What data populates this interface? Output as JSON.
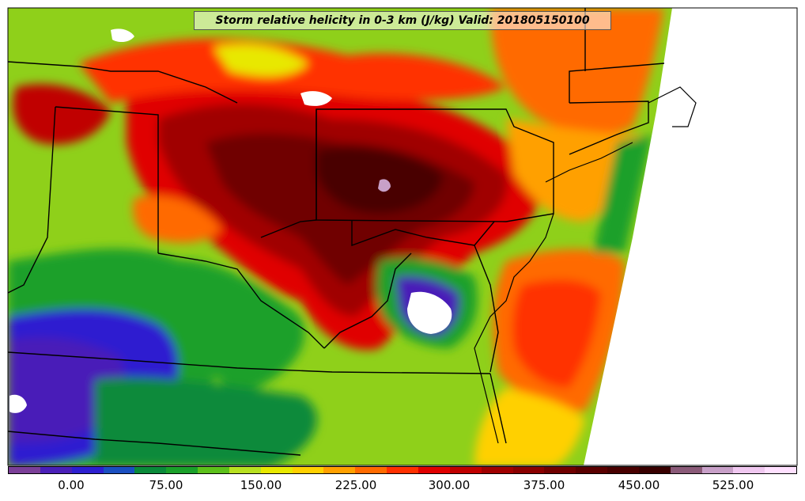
{
  "title": "Storm relative helicity in 0-3 km (J/kg) Valid: 201805150100",
  "colorbar": {
    "colors": [
      "#7b3f98",
      "#4a1fb8",
      "#2d1fd0",
      "#1a4fc0",
      "#0a8a3a",
      "#1aa02a",
      "#5cc01a",
      "#b8e020",
      "#e8e800",
      "#ffd000",
      "#ffa000",
      "#ff6a00",
      "#ff3000",
      "#e00000",
      "#c00000",
      "#a00000",
      "#8a0000",
      "#700000",
      "#5a0000",
      "#480000",
      "#380000",
      "#8a5a78",
      "#c8a0c8",
      "#f0c8f0",
      "#ffe0ff"
    ],
    "ticks": [
      {
        "label": "0.00"
      },
      {
        "label": "75.00"
      },
      {
        "label": "150.00"
      },
      {
        "label": "225.00"
      },
      {
        "label": "300.00"
      },
      {
        "label": "375.00"
      },
      {
        "label": "450.00"
      },
      {
        "label": "525.00"
      }
    ]
  }
}
